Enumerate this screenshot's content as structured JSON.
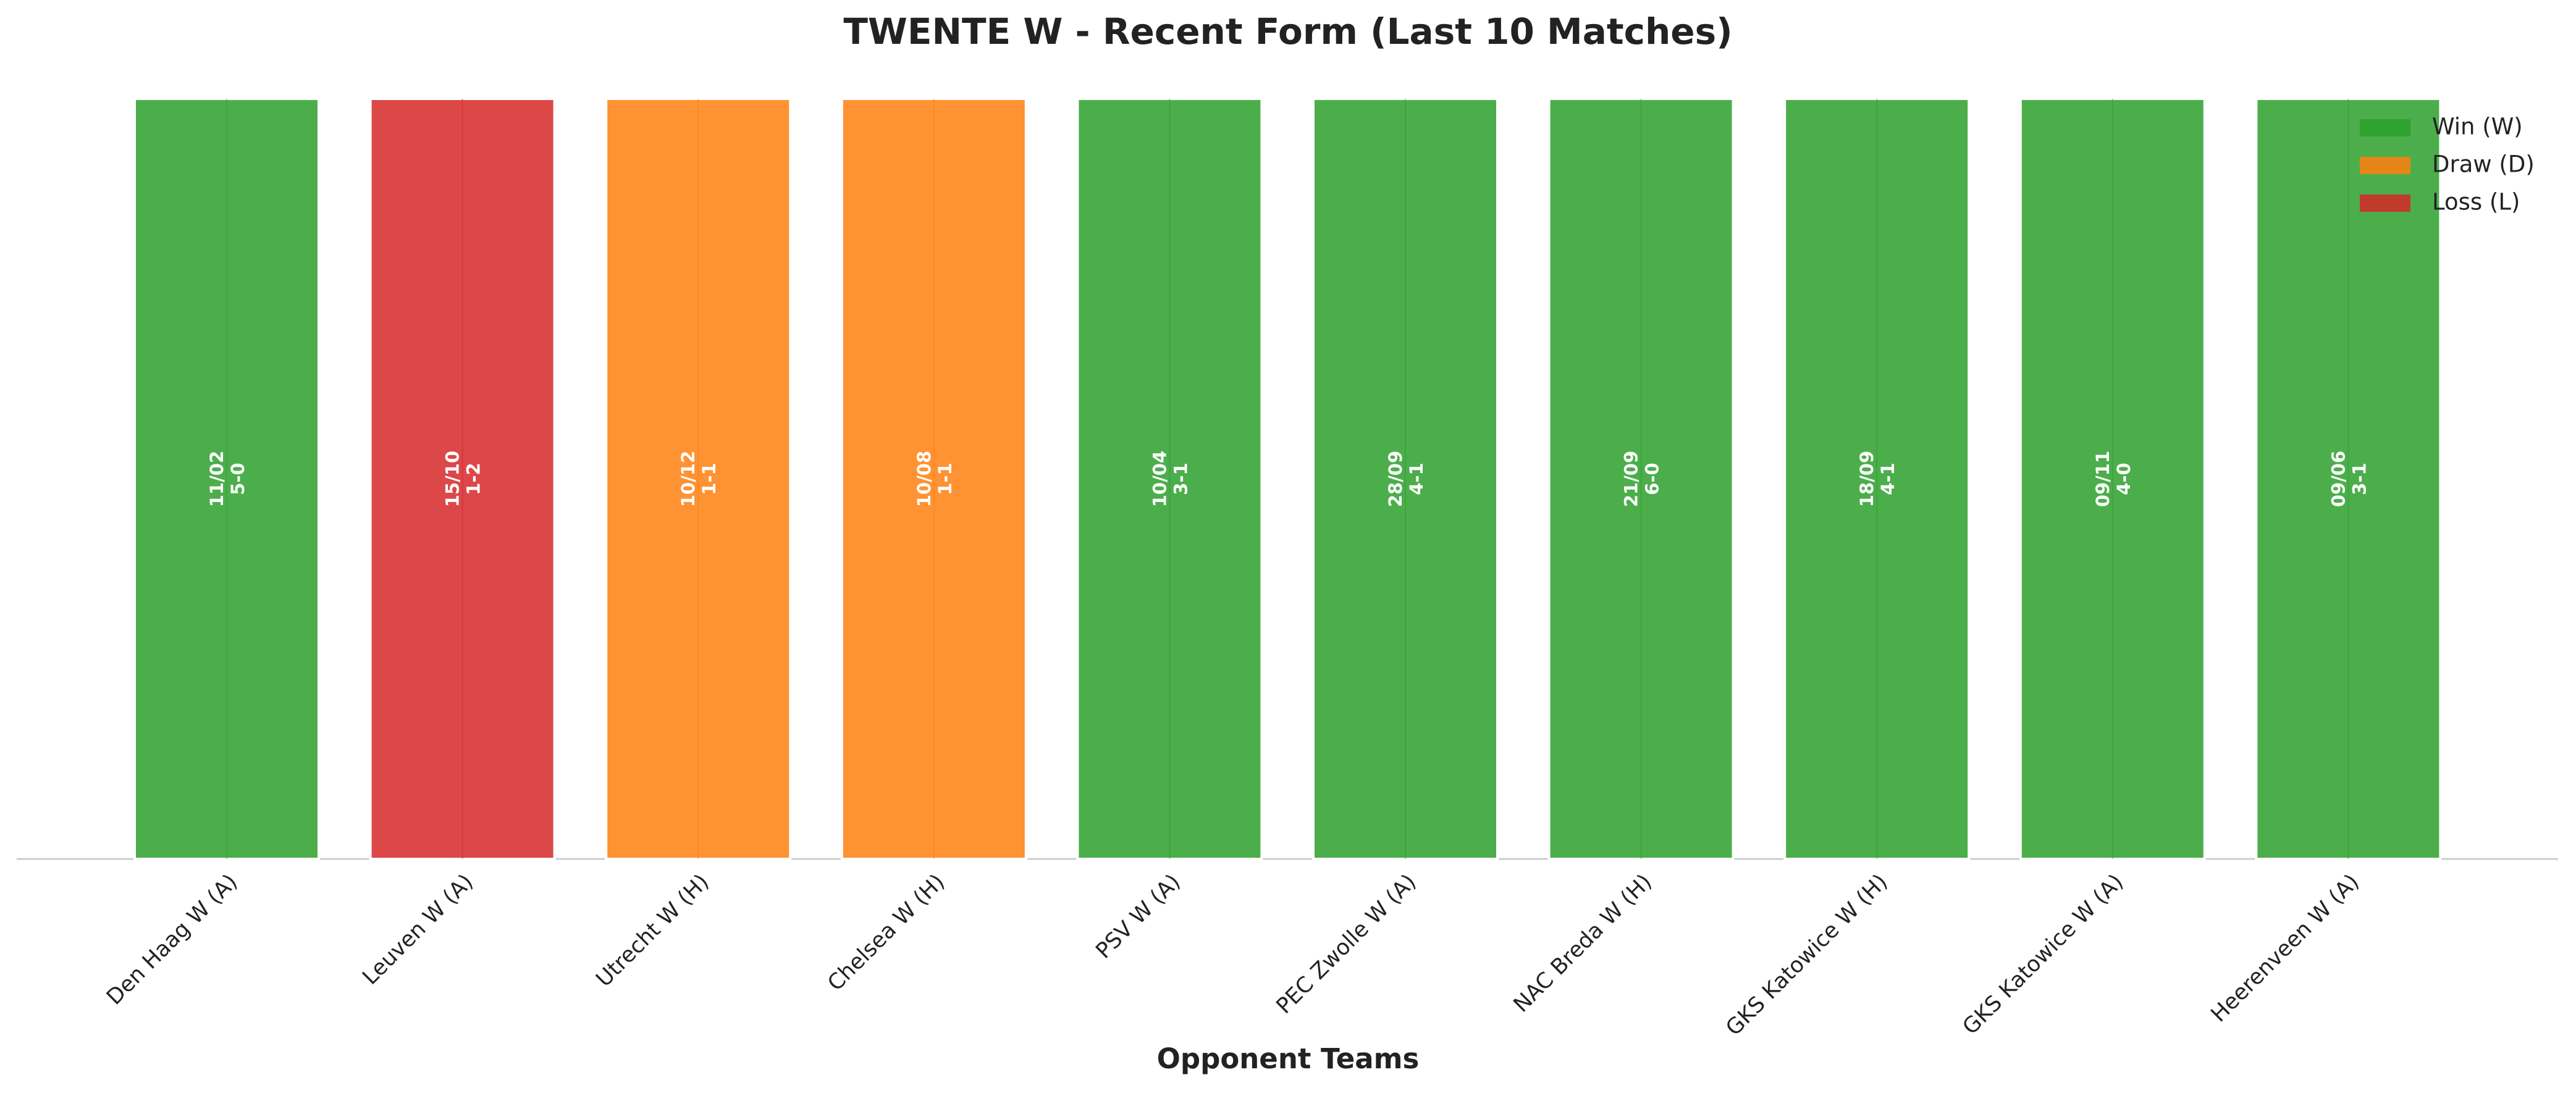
{
  "chart_data": {
    "type": "bar",
    "title": "TWENTE W - Recent Form (Last 10 Matches)",
    "x_label": "Opponent Teams",
    "categories": [
      "Den Haag W (A)",
      "Leuven W (A)",
      "Utrecht W (H)",
      "Chelsea W (H)",
      "PSV W (A)",
      "PEC Zwolle W (A)",
      "NAC Breda W (H)",
      "GKS Katowice W (H)",
      "GKS Katowice W (A)",
      "Heerenveen W (A)"
    ],
    "values": [
      1,
      1,
      1,
      1,
      1,
      1,
      1,
      1,
      1,
      1
    ],
    "colors": [
      "#2ca02c",
      "#d62728",
      "#ff7f0e",
      "#ff7f0e",
      "#2ca02c",
      "#2ca02c",
      "#2ca02c",
      "#2ca02c",
      "#2ca02c",
      "#2ca02c"
    ],
    "dates": [
      "11/02",
      "15/10",
      "10/12",
      "10/08",
      "10/04",
      "28/09",
      "21/09",
      "18/09",
      "09/11",
      "09/06"
    ],
    "scores": [
      "5-0",
      "1-2",
      "1-1",
      "1-1",
      "3-1",
      "4-1",
      "6-0",
      "4-1",
      "4-0",
      "3-1"
    ],
    "ylim": [
      0,
      1
    ],
    "legend_position": "upper right",
    "legend": [
      {
        "name": "Win (W)",
        "color": "#2ca02c"
      },
      {
        "name": "Draw (D)",
        "color": "#ff7f0e"
      },
      {
        "name": "Loss (L)",
        "color": "#d62728"
      }
    ]
  }
}
